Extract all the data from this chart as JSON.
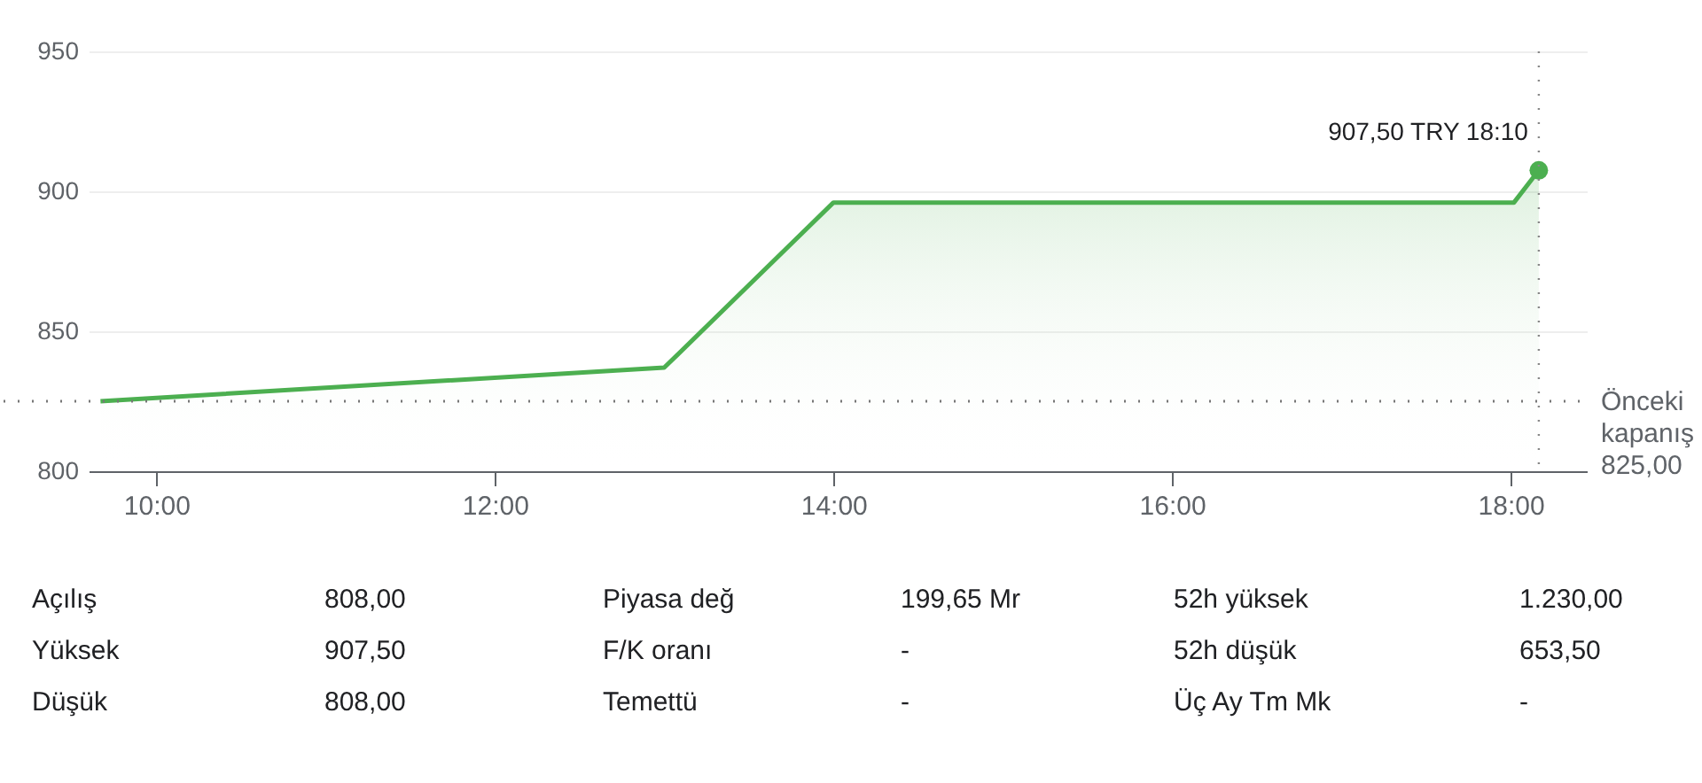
{
  "chart_data": {
    "type": "area",
    "x": [
      9.67,
      13.0,
      14.0,
      18.02,
      18.1667
    ],
    "series": [
      {
        "color": "#4caf50",
        "values": [
          825,
          837,
          896,
          896,
          907.5
        ]
      },
      {
        "type": "scatter",
        "color": "#4caf50",
        "x": [
          18.1667
        ],
        "values": [
          907.5
        ]
      }
    ],
    "xlim": [
      9.6,
      18.45
    ],
    "ylim": [
      800,
      950
    ],
    "xticks": [
      {
        "value": 10,
        "label": "10:00"
      },
      {
        "value": 12,
        "label": "12:00"
      },
      {
        "value": 14,
        "label": "14:00"
      },
      {
        "value": 16,
        "label": "16:00"
      },
      {
        "value": 18,
        "label": "18:00"
      }
    ],
    "yticks": [
      800,
      850,
      900,
      950
    ],
    "grid": "y",
    "ref_lines": [
      {
        "axis": "y",
        "value": 825,
        "label": "Önceki kapanış 825,00",
        "line_style": "dotted"
      },
      {
        "axis": "x",
        "value": 18.1667,
        "line_style": "dotted"
      }
    ],
    "annotations": [
      {
        "text": "907,50 TRY 18:10",
        "x": 18.1667,
        "y": 907.5
      },
      "Açılış",
      "808,00",
      "Piyasa değ",
      "199,65 Mr",
      "52h yüksek",
      "1.230,00",
      "Yüksek",
      "907,50",
      "F/K oranı",
      "-",
      "52h düşük",
      "653,50",
      "Düşük",
      "808,00",
      "Temettü",
      "-",
      "Üç Ay Tm Mk",
      "-"
    ]
  }
}
